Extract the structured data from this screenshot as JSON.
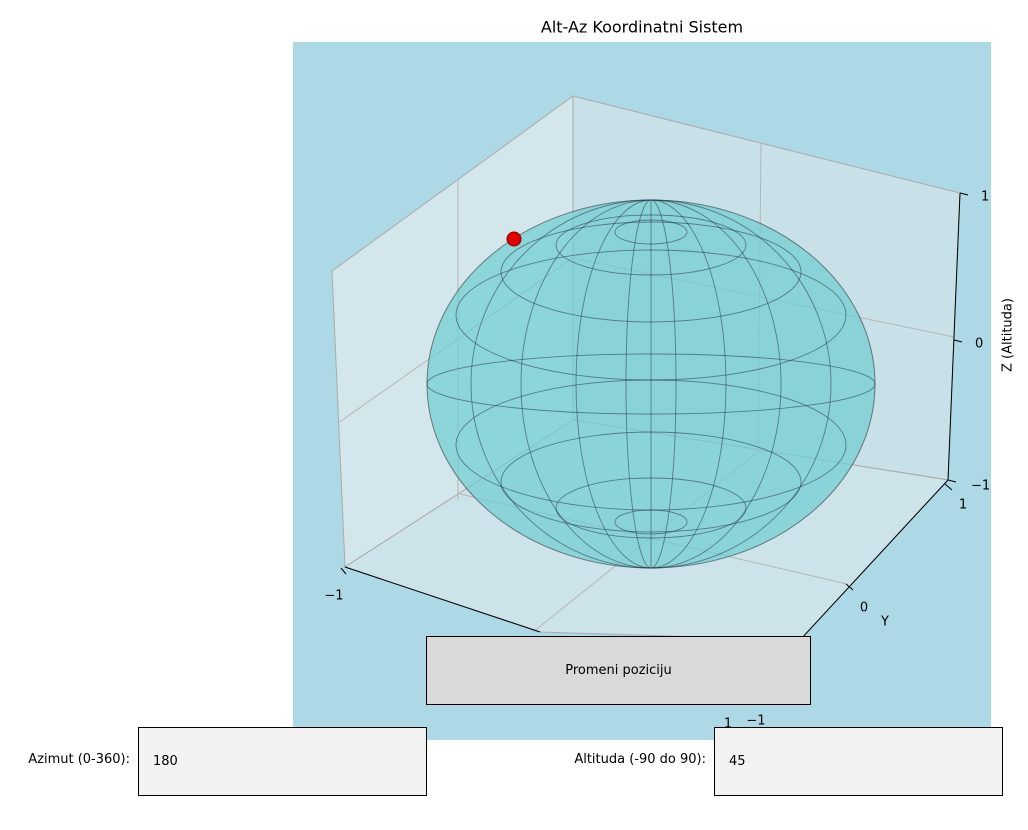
{
  "title": "Alt-Az Koordinatni Sistem",
  "axes": {
    "z_label": "Z (Altituda)",
    "y_label": "Y",
    "z_ticks": [
      "−1",
      "0",
      "1"
    ],
    "y_ticks": [
      "−1",
      "0",
      "1"
    ],
    "x_ticks": [
      "−1",
      "1"
    ]
  },
  "button": {
    "label": "Promeni poziciju"
  },
  "inputs": [
    {
      "label": "Azimut (0-360):",
      "value": "180"
    },
    {
      "label": "Altituda (-90 do 90):",
      "value": "45"
    }
  ]
}
